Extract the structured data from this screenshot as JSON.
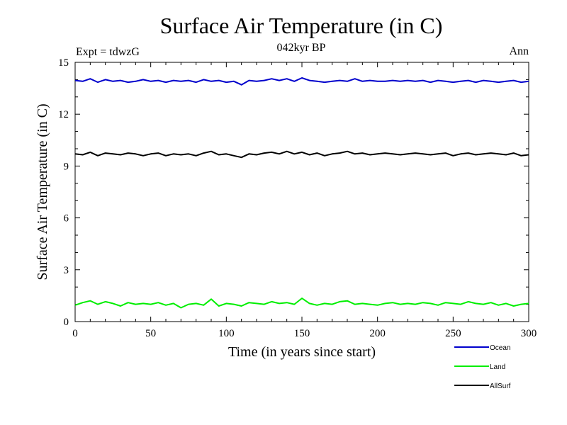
{
  "chart_data": {
    "type": "line",
    "title": "Surface Air Temperature (in C)",
    "subtitle": "042kyr BP",
    "experiment_label": "Expt = tdwzG",
    "season_label": "Ann",
    "xlabel": "Time (in years since start)",
    "ylabel": "Surface Air Temperature (in C)",
    "xlim": [
      0,
      300
    ],
    "ylim": [
      0,
      15
    ],
    "xticks": [
      0,
      50,
      100,
      150,
      200,
      250,
      300
    ],
    "yticks": [
      0,
      3,
      6,
      9,
      12,
      15
    ],
    "grid": false,
    "legend_position": "bottom-right",
    "x": [
      0,
      5,
      10,
      15,
      20,
      25,
      30,
      35,
      40,
      45,
      50,
      55,
      60,
      65,
      70,
      75,
      80,
      85,
      90,
      95,
      100,
      105,
      110,
      115,
      120,
      125,
      130,
      135,
      140,
      145,
      150,
      155,
      160,
      165,
      170,
      175,
      180,
      185,
      190,
      195,
      200,
      205,
      210,
      215,
      220,
      225,
      230,
      235,
      240,
      245,
      250,
      255,
      260,
      265,
      270,
      275,
      280,
      285,
      290,
      295,
      300
    ],
    "series": [
      {
        "name": "Ocean",
        "color": "#0000cc",
        "values": [
          13.95,
          13.9,
          14.05,
          13.85,
          14.0,
          13.9,
          13.95,
          13.85,
          13.9,
          14.0,
          13.9,
          13.95,
          13.85,
          13.95,
          13.9,
          13.95,
          13.85,
          14.0,
          13.9,
          13.95,
          13.85,
          13.9,
          13.7,
          13.95,
          13.9,
          13.95,
          14.05,
          13.95,
          14.05,
          13.9,
          14.1,
          13.95,
          13.9,
          13.85,
          13.9,
          13.95,
          13.9,
          14.05,
          13.9,
          13.95,
          13.9,
          13.9,
          13.95,
          13.9,
          13.95,
          13.9,
          13.95,
          13.85,
          13.95,
          13.9,
          13.85,
          13.9,
          13.95,
          13.85,
          13.95,
          13.9,
          13.85,
          13.9,
          13.95,
          13.85,
          13.9
        ]
      },
      {
        "name": "Land",
        "color": "#00ee00",
        "values": [
          0.95,
          1.1,
          1.2,
          1.0,
          1.15,
          1.05,
          0.9,
          1.1,
          1.0,
          1.05,
          1.0,
          1.1,
          0.95,
          1.05,
          0.8,
          1.0,
          1.05,
          0.95,
          1.3,
          0.9,
          1.05,
          1.0,
          0.9,
          1.1,
          1.05,
          1.0,
          1.15,
          1.05,
          1.1,
          1.0,
          1.35,
          1.05,
          0.95,
          1.05,
          1.0,
          1.15,
          1.2,
          1.0,
          1.05,
          1.0,
          0.95,
          1.05,
          1.1,
          1.0,
          1.05,
          1.0,
          1.1,
          1.05,
          0.95,
          1.1,
          1.05,
          1.0,
          1.15,
          1.05,
          1.0,
          1.1,
          0.95,
          1.05,
          0.9,
          1.0,
          1.05
        ]
      },
      {
        "name": "AllSurf",
        "color": "#000000",
        "values": [
          9.7,
          9.65,
          9.8,
          9.6,
          9.75,
          9.7,
          9.65,
          9.75,
          9.7,
          9.6,
          9.7,
          9.75,
          9.6,
          9.7,
          9.65,
          9.7,
          9.6,
          9.75,
          9.85,
          9.65,
          9.7,
          9.6,
          9.5,
          9.7,
          9.65,
          9.75,
          9.8,
          9.7,
          9.85,
          9.7,
          9.8,
          9.65,
          9.75,
          9.6,
          9.7,
          9.75,
          9.85,
          9.7,
          9.75,
          9.65,
          9.7,
          9.75,
          9.7,
          9.65,
          9.7,
          9.75,
          9.7,
          9.65,
          9.7,
          9.75,
          9.6,
          9.7,
          9.75,
          9.65,
          9.7,
          9.75,
          9.7,
          9.65,
          9.75,
          9.6,
          9.65
        ]
      }
    ]
  }
}
